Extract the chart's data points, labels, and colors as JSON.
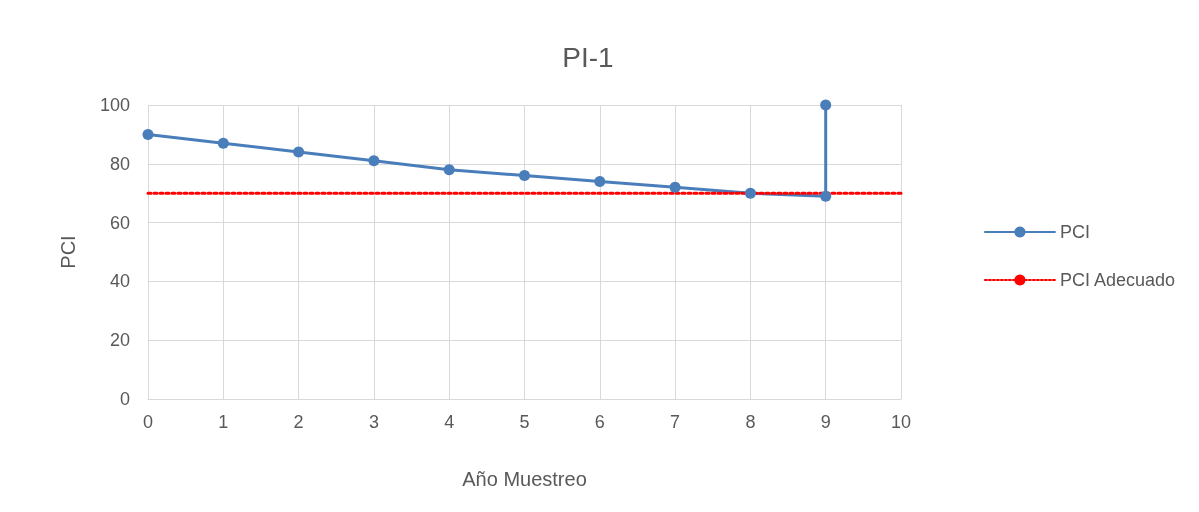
{
  "chart_data": {
    "type": "line",
    "title": "PI-1",
    "xlabel": "Año Muestreo",
    "ylabel": "PCI",
    "xlim": [
      0,
      10
    ],
    "xticks": [
      0,
      1,
      2,
      3,
      4,
      5,
      6,
      7,
      8,
      9,
      10
    ],
    "ylim": [
      0,
      100
    ],
    "yticks": [
      0,
      20,
      40,
      60,
      80,
      100
    ],
    "grid": true,
    "legend": "right",
    "series": [
      {
        "name": "PCI",
        "color": "#4a7ebb",
        "marker": "circle",
        "line_style": "solid",
        "x": [
          0,
          1,
          2,
          3,
          4,
          5,
          6,
          7,
          8,
          9,
          9
        ],
        "values": [
          90,
          87,
          84,
          81,
          78,
          76,
          74,
          72,
          70,
          69,
          100
        ]
      },
      {
        "name": "PCI Adecuado",
        "color": "#ff0000",
        "marker": "none",
        "line_style": "dotted",
        "x": [
          0,
          10
        ],
        "values": [
          70,
          70
        ]
      }
    ]
  }
}
